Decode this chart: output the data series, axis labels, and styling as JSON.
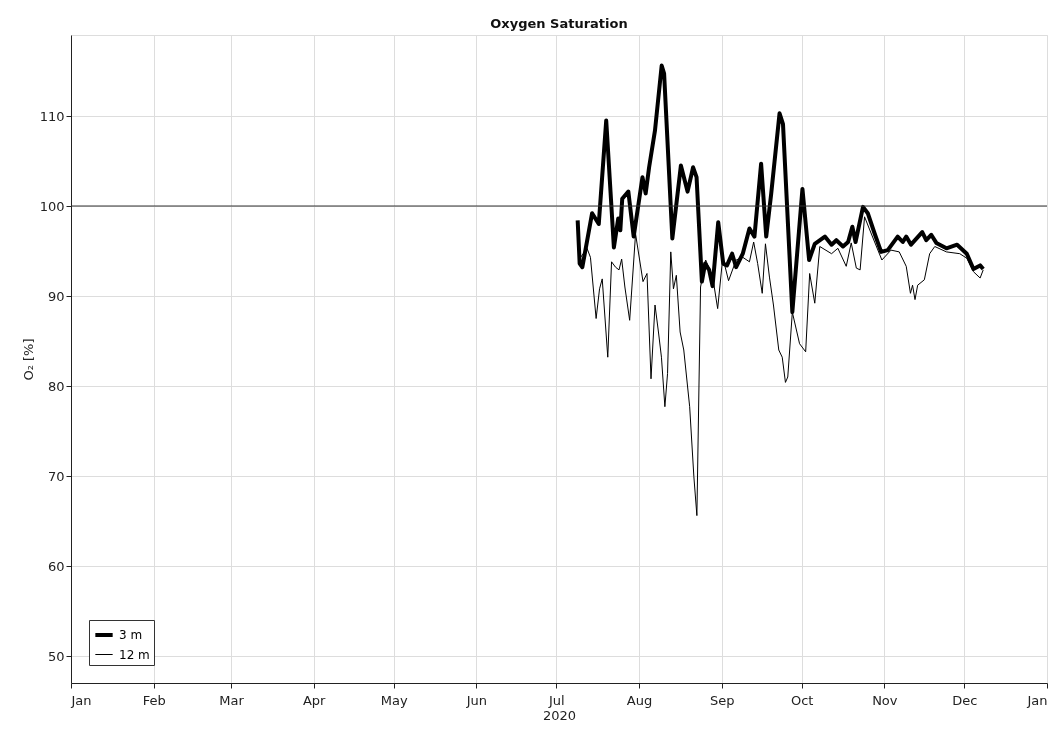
{
  "chart_data": {
    "type": "line",
    "title": "Oxygen Saturation",
    "xlabel": "2020",
    "ylabel": "O₂ [%]",
    "xlim": [
      "2020-01-01",
      "2021-01-01"
    ],
    "xticks": [
      {
        "value": "2020-01-01",
        "label": "Jan"
      },
      {
        "value": "2020-02-01",
        "label": "Feb"
      },
      {
        "value": "2020-03-01",
        "label": "Mar"
      },
      {
        "value": "2020-04-01",
        "label": "Apr"
      },
      {
        "value": "2020-05-01",
        "label": "May"
      },
      {
        "value": "2020-06-01",
        "label": "Jun"
      },
      {
        "value": "2020-07-01",
        "label": "Jul"
      },
      {
        "value": "2020-08-01",
        "label": "Aug"
      },
      {
        "value": "2020-09-01",
        "label": "Sep"
      },
      {
        "value": "2020-10-01",
        "label": "Oct"
      },
      {
        "value": "2020-11-01",
        "label": "Nov"
      },
      {
        "value": "2020-12-01",
        "label": "Dec"
      },
      {
        "value": "2021-01-01",
        "label": "Jan"
      }
    ],
    "ylim": [
      47,
      119
    ],
    "yticks": [
      50,
      60,
      70,
      80,
      90,
      100,
      110
    ],
    "grid": true,
    "legend": "bottom left",
    "line_style": "solid",
    "marker": "none",
    "ref_lines": [
      {
        "axis": "y",
        "value": 100,
        "color": "#333333"
      }
    ],
    "series": [
      {
        "name": "3 m",
        "color": "#000000",
        "x": [
          "2020-07-09T00:00",
          "2020-07-09T18:00",
          "2020-07-10T18:00",
          "2020-07-14T10:00",
          "2020-07-16T22:00",
          "2020-07-19T17:00",
          "2020-07-22T14:00",
          "2020-07-24T05:00",
          "2020-07-25T00:00",
          "2020-07-25T17:00",
          "2020-07-28T00:00",
          "2020-07-30T00:00",
          "2020-08-02T07:00",
          "2020-08-03T12:00",
          "2020-08-04T19:00",
          "2020-08-07T00:00",
          "2020-08-09T12:00",
          "2020-08-10T10:00",
          "2020-08-13T12:00",
          "2020-08-16T17:00",
          "2020-08-19T05:00",
          "2020-08-21T07:00",
          "2020-08-22T14:00",
          "2020-08-24T14:00",
          "2020-08-25T19:00",
          "2020-08-27T07:00",
          "2020-08-28T14:00",
          "2020-08-30T17:00",
          "2020-09-01T14:00",
          "2020-09-03T00:00",
          "2020-09-04T22:00",
          "2020-09-06T10:00",
          "2020-09-08T22:00",
          "2020-09-11T10:00",
          "2020-09-13T07:00",
          "2020-09-15T19:00",
          "2020-09-17T17:00",
          "2020-09-19T14:00",
          "2020-09-22T17:00",
          "2020-09-24T00:00",
          "2020-09-27T12:00",
          "2020-10-01T07:00",
          "2020-10-03T19:00",
          "2020-10-05T22:00",
          "2020-10-09T17:00",
          "2020-10-12T05:00",
          "2020-10-14T00:00",
          "2020-10-16T12:00",
          "2020-10-18T10:00",
          "2020-10-20T00:00",
          "2020-10-21T05:00",
          "2020-10-24T00:00",
          "2020-10-25T19:00",
          "2020-10-28T07:00",
          "2020-10-30T19:00",
          "2020-11-02T07:00",
          "2020-11-06T00:00",
          "2020-11-07T22:00",
          "2020-11-09T05:00",
          "2020-11-11T00:00",
          "2020-11-15T05:00",
          "2020-11-16T17:00",
          "2020-11-18T14:00",
          "2020-11-20T12:00",
          "2020-11-24T07:00",
          "2020-11-28T07:00",
          "2020-12-01T22:00",
          "2020-12-04T10:00",
          "2020-12-06T22:00",
          "2020-12-08T02:00"
        ],
        "values": [
          98.4,
          93.6,
          93.2,
          99.2,
          98.0,
          109.5,
          95.4,
          98.6,
          97.3,
          100.8,
          101.6,
          96.6,
          103.2,
          101.4,
          104.3,
          108.4,
          115.6,
          114.7,
          96.4,
          104.5,
          101.6,
          104.3,
          103.2,
          91.6,
          93.6,
          92.9,
          91.1,
          98.2,
          93.6,
          93.4,
          94.7,
          93.2,
          94.7,
          97.5,
          96.6,
          104.7,
          96.6,
          101.4,
          110.3,
          109.1,
          88.2,
          101.9,
          94.0,
          95.8,
          96.6,
          95.7,
          96.2,
          95.5,
          96.0,
          97.7,
          96.0,
          99.9,
          99.2,
          97.0,
          94.9,
          95.1,
          96.6,
          96.0,
          96.6,
          95.7,
          97.1,
          96.2,
          96.8,
          95.9,
          95.3,
          95.7,
          94.7,
          93.0,
          93.4,
          93.0
        ]
      },
      {
        "name": "12 m",
        "color": "#000000",
        "x": [
          "2020-07-09T10:00",
          "2020-07-12T12:00",
          "2020-07-13T19:00",
          "2020-07-15T22:00",
          "2020-07-17T05:00",
          "2020-07-18T05:00",
          "2020-07-20T07:00",
          "2020-07-21T17:00",
          "2020-07-23T05:00",
          "2020-07-24T12:00",
          "2020-07-25T12:00",
          "2020-07-26T17:00",
          "2020-07-28T12:00",
          "2020-07-30T17:00",
          "2020-08-02T12:00",
          "2020-08-04T00:00",
          "2020-08-05T12:00",
          "2020-08-07T00:00",
          "2020-08-08T07:00",
          "2020-08-09T10:00",
          "2020-08-10T17:00",
          "2020-08-11T17:00",
          "2020-08-12T22:00",
          "2020-08-13T22:00",
          "2020-08-15T00:00",
          "2020-08-16T10:00",
          "2020-08-17T19:00",
          "2020-08-20T00:00",
          "2020-08-21T14:00",
          "2020-08-22T17:00",
          "2020-08-24T02:00",
          "2020-08-26T00:00",
          "2020-08-28T14:00",
          "2020-08-30T12:00",
          "2020-09-01T10:00",
          "2020-09-03T14:00",
          "2020-09-06T10:00",
          "2020-09-08T22:00",
          "2020-09-11T10:00",
          "2020-09-13T00:00",
          "2020-09-14T12:00",
          "2020-09-16T05:00",
          "2020-09-17T10:00",
          "2020-09-18T22:00",
          "2020-09-20T10:00",
          "2020-09-22T10:00",
          "2020-09-23T17:00",
          "2020-09-24T22:00",
          "2020-09-25T19:00",
          "2020-09-27T12:00",
          "2020-09-30T05:00",
          "2020-10-02T12:00",
          "2020-10-04T00:00",
          "2020-10-05T22:00",
          "2020-10-07T19:00",
          "2020-10-12T05:00",
          "2020-10-14T14:00",
          "2020-10-17T17:00",
          "2020-10-19T14:00",
          "2020-10-21T12:00",
          "2020-10-22T22:00",
          "2020-10-24T14:00",
          "2020-10-27T00:00",
          "2020-10-31T02:00",
          "2020-11-03T12:00",
          "2020-11-06T14:00",
          "2020-11-09T05:00",
          "2020-11-10T19:00",
          "2020-11-11T14:00",
          "2020-11-12T12:00",
          "2020-11-13T12:00",
          "2020-11-16T00:00",
          "2020-11-18T00:00",
          "2020-11-19T22:00",
          "2020-11-24T07:00",
          "2020-11-29T07:00",
          "2020-12-01T22:00",
          "2020-12-04T10:00",
          "2020-12-06T22:00",
          "2020-12-08T02:00"
        ],
        "values": [
          94.0,
          95.3,
          94.3,
          87.5,
          90.8,
          91.9,
          83.2,
          93.8,
          93.2,
          92.9,
          94.1,
          91.0,
          87.3,
          96.9,
          91.6,
          92.5,
          80.8,
          89.0,
          86.0,
          83.2,
          77.7,
          81.4,
          94.9,
          90.8,
          92.3,
          86.0,
          84.0,
          77.7,
          69.9,
          65.6,
          91.0,
          94.0,
          92.2,
          88.6,
          94.3,
          91.7,
          94.0,
          94.3,
          93.8,
          96.0,
          93.6,
          90.3,
          95.8,
          92.1,
          89.0,
          84.0,
          83.2,
          80.4,
          81.0,
          88.2,
          84.7,
          83.8,
          92.5,
          89.2,
          95.5,
          94.7,
          95.3,
          93.3,
          95.9,
          93.1,
          92.9,
          98.8,
          97.0,
          94.0,
          95.1,
          94.9,
          93.3,
          90.3,
          91.2,
          89.6,
          91.2,
          91.8,
          94.7,
          95.5,
          94.9,
          94.7,
          94.2,
          92.7,
          92.0,
          92.9
        ]
      }
    ]
  }
}
